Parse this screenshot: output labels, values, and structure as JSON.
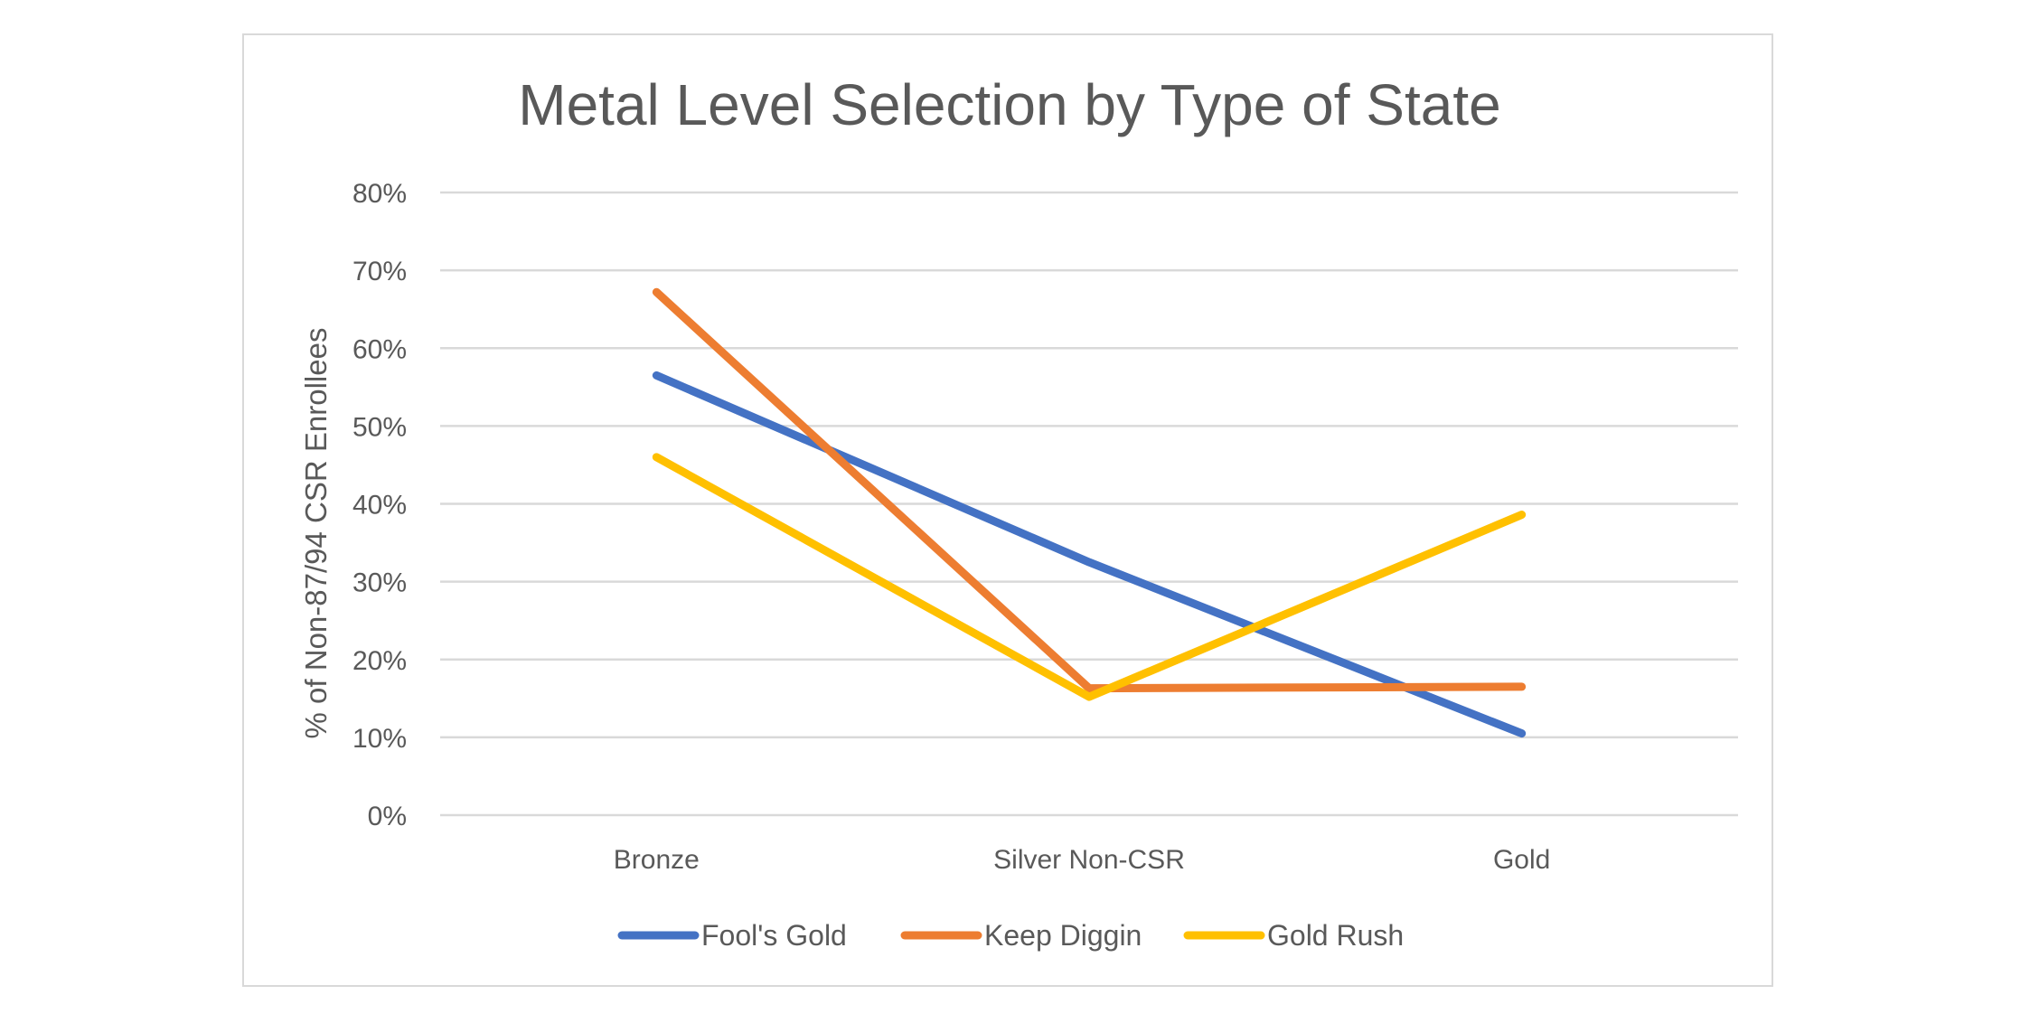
{
  "chart_data": {
    "type": "line",
    "title": "Metal Level Selection by Type of State",
    "xlabel": "",
    "ylabel": "% of Non-87/94 CSR Enrollees",
    "categories": [
      "Bronze",
      "Silver Non-CSR",
      "Gold"
    ],
    "ylim": [
      0,
      0.8
    ],
    "yticks": [
      "0%",
      "10%",
      "20%",
      "30%",
      "40%",
      "50%",
      "60%",
      "70%",
      "80%"
    ],
    "grid": true,
    "legend_position": "bottom",
    "series": [
      {
        "name": "Fool's Gold",
        "values": [
          0.565,
          0.325,
          0.105
        ],
        "color": "#4472C4"
      },
      {
        "name": "Keep Diggin",
        "values": [
          0.672,
          0.163,
          0.165
        ],
        "color": "#ED7D31"
      },
      {
        "name": "Gold Rush",
        "values": [
          0.46,
          0.152,
          0.386
        ],
        "color": "#FFC000"
      }
    ]
  }
}
